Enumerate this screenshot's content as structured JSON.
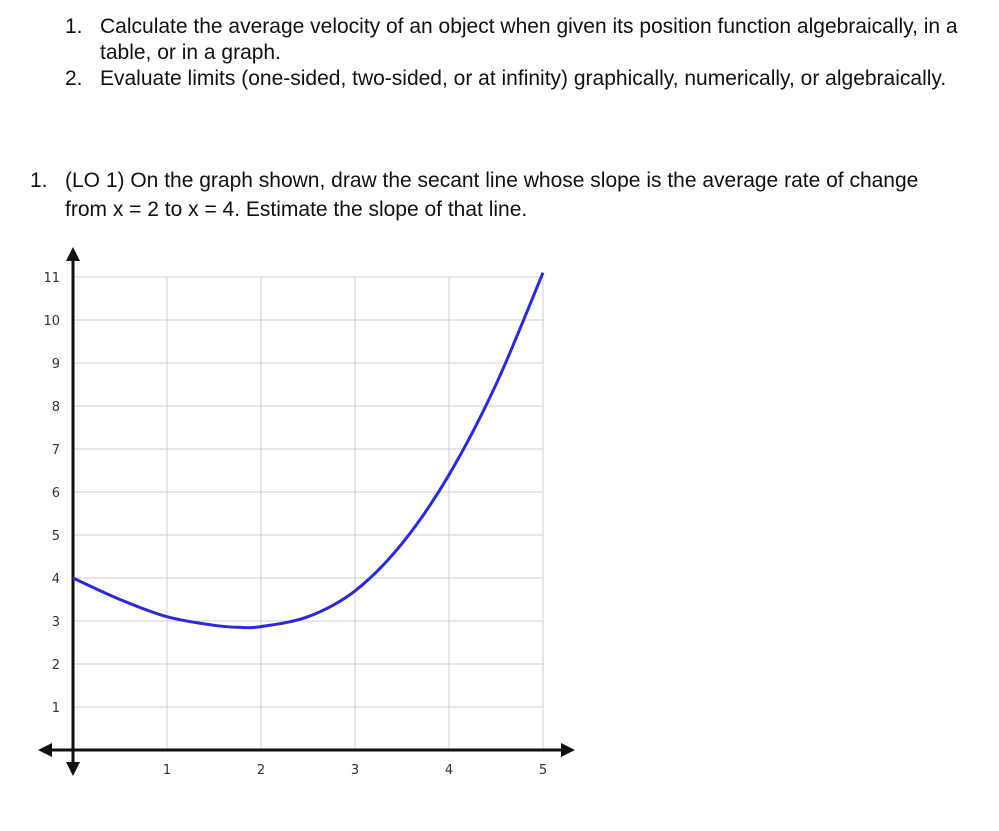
{
  "objectives": [
    {
      "number": "1.",
      "text": "Calculate the average velocity of an object when given its position function algebraically, in a table, or in a graph."
    },
    {
      "number": "2.",
      "text": "Evaluate limits (one-sided, two-sided, or at infinity) graphically, numerically, or algebraically."
    }
  ],
  "question": {
    "number": "1.",
    "text": "(LO 1) On the graph shown, draw the secant line whose slope is the average rate of change from x = 2 to x = 4. Estimate the slope of that line."
  },
  "chart_data": {
    "type": "line",
    "xlim": [
      0,
      5
    ],
    "ylim": [
      0,
      11
    ],
    "x_ticks": [
      "1",
      "2",
      "3",
      "4",
      "5"
    ],
    "y_ticks": [
      "1",
      "2",
      "3",
      "4",
      "5",
      "6",
      "7",
      "8",
      "9",
      "10",
      "11"
    ],
    "grid": true,
    "series_color": "#2a2ad8",
    "x": [
      0,
      0.5,
      1,
      1.5,
      1.8,
      2,
      2.5,
      3,
      3.5,
      4,
      4.5,
      5
    ],
    "y": [
      4,
      3.5,
      3.1,
      2.9,
      2.85,
      2.87,
      3.1,
      3.7,
      4.8,
      6.4,
      8.5,
      11.1
    ]
  }
}
